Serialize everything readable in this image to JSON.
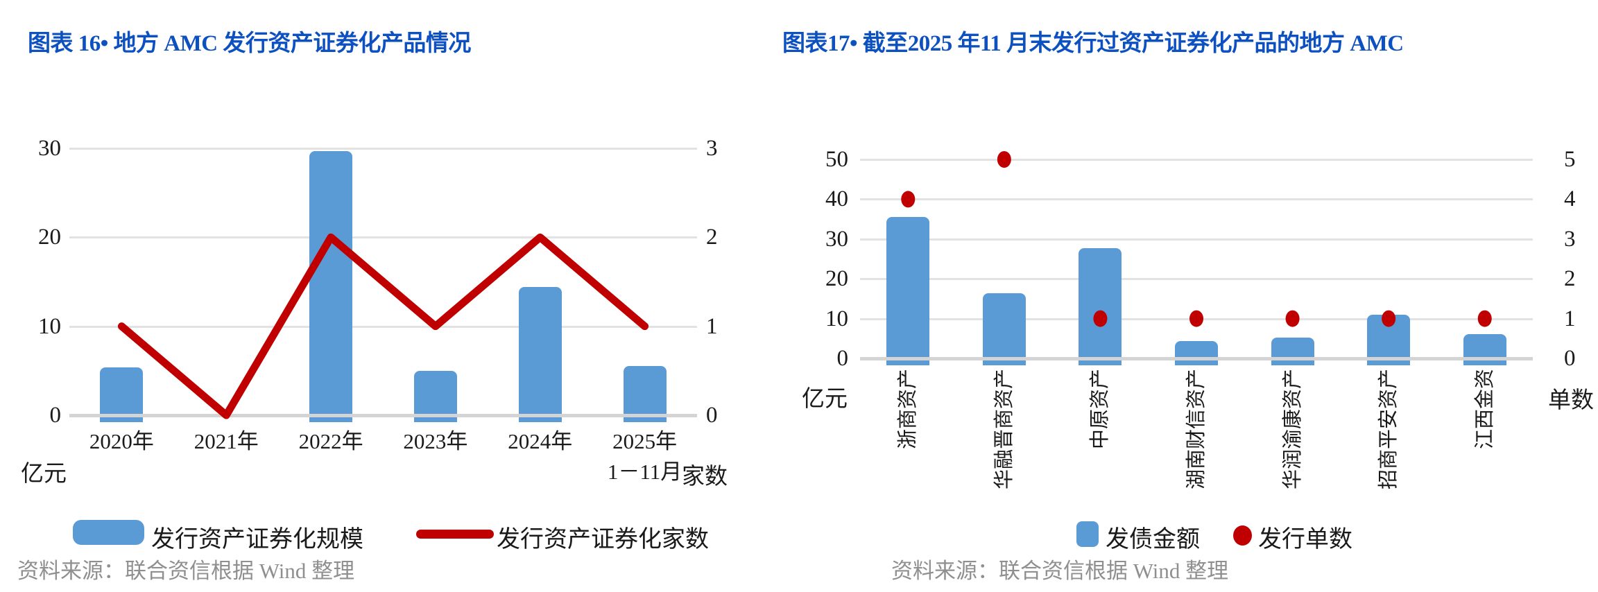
{
  "colors": {
    "title_blue": "#0d50c0",
    "bar_blue": "#5b9bd5",
    "line_red": "#c00000",
    "grid_gray": "#e2e2e2",
    "source_gray": "#8f8f8f"
  },
  "chart_data": [
    {
      "type": "bar+line",
      "title": "图表 16• 地方 AMC 发行资产证券化产品情况",
      "categories": [
        "2020年",
        "2021年",
        "2022年",
        "2023年",
        "2024年",
        [
          "2025年",
          "1－11月"
        ]
      ],
      "series": [
        {
          "name": "发行资产证券化规模",
          "type": "bar",
          "axis": "left",
          "values": [
            5.4,
            0,
            29.7,
            5.0,
            14.4,
            5.5
          ]
        },
        {
          "name": "发行资产证券化家数",
          "type": "line",
          "axis": "right",
          "values": [
            1,
            0,
            2,
            1,
            2,
            1
          ]
        }
      ],
      "left_axis": {
        "label": "亿元",
        "min": 0,
        "max": 30,
        "step": 10,
        "ticks": [
          0,
          10,
          20,
          30
        ]
      },
      "right_axis": {
        "label": "家数",
        "min": 0,
        "max": 3,
        "step": 1,
        "ticks": [
          0,
          1,
          2,
          3
        ]
      },
      "grid": true,
      "legend_position": "bottom",
      "source": "资料来源：联合资信根据 Wind 整理"
    },
    {
      "type": "bar+scatter",
      "title": "图表17• 截至2025 年11 月末发行过资产证券化产品的地方 AMC",
      "categories": [
        "浙商资产",
        "华融晋商资产",
        "中原资产",
        "湖南财信资产",
        "华润渝康资产",
        "招商平安资产",
        "江西金资"
      ],
      "series": [
        {
          "name": "发债金额",
          "type": "bar",
          "axis": "left",
          "values": [
            35.5,
            16.3,
            27.7,
            4.3,
            5.2,
            11,
            6.1
          ]
        },
        {
          "name": "发行单数",
          "type": "scatter",
          "axis": "right",
          "values": [
            4,
            5,
            1,
            1,
            1,
            1,
            1
          ]
        }
      ],
      "left_axis": {
        "label": "亿元",
        "min": 0,
        "max": 50,
        "step": 10,
        "ticks": [
          0,
          10,
          20,
          30,
          40,
          50
        ]
      },
      "right_axis": {
        "label": "单数",
        "min": 0,
        "max": 5,
        "step": 1,
        "ticks": [
          0,
          1,
          2,
          3,
          4,
          5
        ]
      },
      "grid": true,
      "legend_position": "bottom",
      "source": "资料来源：联合资信根据 Wind 整理"
    }
  ]
}
